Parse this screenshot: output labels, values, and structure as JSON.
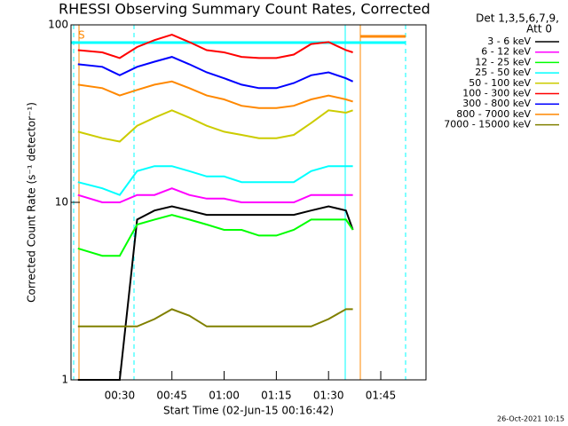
{
  "chart_data": {
    "type": "line",
    "title": "RHESSI Observing Summary Count Rates, Corrected",
    "x_label": "Start Time (02-Jun-15 00:16:42)",
    "y_label": "Corrected Count Rate (s⁻¹ detector⁻¹)",
    "legend_title": [
      "Det 1,3,5,6,7,9,",
      "Att 0"
    ],
    "annotation": "S",
    "timestamp": "26-Oct-2021 10:15",
    "log_y": true,
    "xlim": [
      "00:16",
      "01:58"
    ],
    "xticks": [
      "00:30",
      "00:45",
      "01:00",
      "01:15",
      "01:30",
      "01:45"
    ],
    "ylim": [
      1,
      100
    ],
    "yticks": [
      1,
      10,
      100
    ],
    "x": [
      "00:18",
      "00:25",
      "00:30",
      "00:35",
      "00:40",
      "00:45",
      "00:50",
      "00:55",
      "01:00",
      "01:05",
      "01:10",
      "01:15",
      "01:20",
      "01:25",
      "01:30",
      "01:35",
      "01:37"
    ],
    "series": [
      {
        "name": "3 - 6 keV",
        "color": "#000000",
        "values": [
          1,
          1,
          1,
          8,
          9,
          9.5,
          9,
          8.5,
          8.5,
          8.5,
          8.5,
          8.5,
          8.5,
          9,
          9.5,
          9,
          7
        ]
      },
      {
        "name": "6 - 12 keV",
        "color": "#ff00ff",
        "values": [
          11,
          10,
          10,
          11,
          11,
          12,
          11,
          10.5,
          10.5,
          10,
          10,
          10,
          10,
          11,
          11,
          11,
          11
        ]
      },
      {
        "name": "12 - 25 keV",
        "color": "#00ff00",
        "values": [
          5.5,
          5,
          5,
          7.5,
          8,
          8.5,
          8,
          7.5,
          7,
          7,
          6.5,
          6.5,
          7,
          8,
          8,
          8,
          7
        ]
      },
      {
        "name": "25 - 50 keV",
        "color": "#00ffff",
        "values": [
          13,
          12,
          11,
          15,
          16,
          16,
          15,
          14,
          14,
          13,
          13,
          13,
          13,
          15,
          16,
          16,
          16
        ]
      },
      {
        "name": "50 - 100 keV",
        "color": "#cccc00",
        "values": [
          25,
          23,
          22,
          27,
          30,
          33,
          30,
          27,
          25,
          24,
          23,
          23,
          24,
          28,
          33,
          32,
          33
        ]
      },
      {
        "name": "100 - 300 keV",
        "color": "#ff0000",
        "values": [
          72,
          70,
          65,
          75,
          82,
          88,
          80,
          72,
          70,
          66,
          65,
          65,
          68,
          78,
          80,
          72,
          70
        ]
      },
      {
        "name": "300 - 800 keV",
        "color": "#0000ff",
        "values": [
          60,
          58,
          52,
          58,
          62,
          66,
          60,
          54,
          50,
          46,
          44,
          44,
          47,
          52,
          54,
          50,
          48
        ]
      },
      {
        "name": "800 - 7000 keV",
        "color": "#ff8800",
        "values": [
          46,
          44,
          40,
          43,
          46,
          48,
          44,
          40,
          38,
          35,
          34,
          34,
          35,
          38,
          40,
          38,
          37
        ]
      },
      {
        "name": "7000 - 15000 keV",
        "color": "#808000",
        "values": [
          2,
          2,
          2,
          2,
          2.2,
          2.5,
          2.3,
          2,
          2,
          2,
          2,
          2,
          2,
          2,
          2.2,
          2.5,
          2.5
        ]
      }
    ]
  }
}
